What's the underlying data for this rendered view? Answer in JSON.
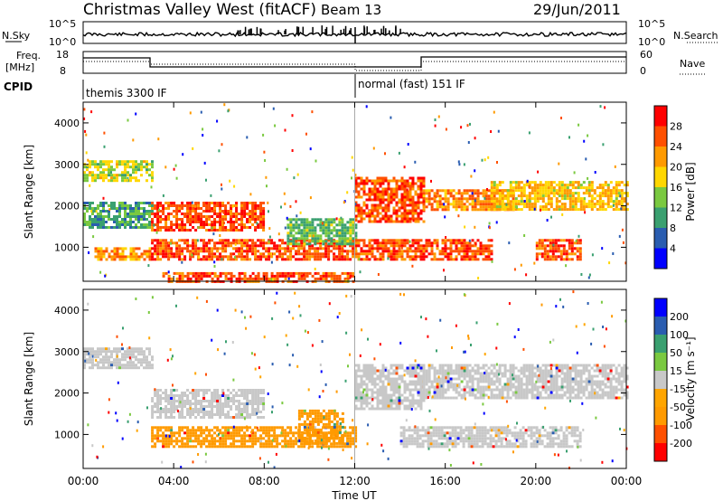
{
  "header": {
    "station": "Christmas Valley West (fitACF)",
    "beam": "Beam 13",
    "date": "29/Jun/2011"
  },
  "top_panels": {
    "nsky_label": "N.Sky",
    "nsearch_label": "N.Search",
    "freq_label_line1": "Freq.",
    "freq_label_line2": "[MHz]",
    "nave_label": "Nave",
    "cpid_label": "CPID",
    "nsky_ticks": [
      "10^5",
      "10^0"
    ],
    "nsky_ticks_right": [
      "10^5",
      "10^0"
    ],
    "freq_ticks": [
      "18",
      "8"
    ],
    "nave_ticks": [
      "60",
      "0"
    ]
  },
  "cpid_segments": [
    {
      "label": "themis 3300 IF",
      "start_hour": 0,
      "end_hour": 12
    },
    {
      "label": "normal (fast) 151 IF",
      "start_hour": 12,
      "end_hour": 24
    }
  ],
  "colorbars": {
    "power": {
      "label": "Power [dB]",
      "ticks": [
        "28",
        "24",
        "20",
        "16",
        "12",
        "8",
        "4"
      ]
    },
    "velocity": {
      "label": "Velocity [m s⁻¹]",
      "ticks": [
        "200",
        "100",
        "50",
        "15",
        "-15",
        "-50",
        "-100",
        "-200"
      ]
    }
  },
  "chart_data": [
    {
      "type": "heatmap",
      "title": "",
      "quantity": "Power",
      "xlabel": "",
      "ylabel": "Slant Range [km]",
      "xlim": [
        0,
        24
      ],
      "ylim": [
        180,
        4500
      ],
      "x_ticks": [
        "00:00",
        "04:00",
        "08:00",
        "12:00",
        "16:00",
        "20:00",
        "00:00"
      ],
      "y_ticks": [
        1000,
        2000,
        3000,
        4000
      ],
      "colorbar_range_db": [
        0,
        32
      ],
      "colors": [
        "#0000ff",
        "#2a5db0",
        "#3aa070",
        "#7ac940",
        "#ffd700",
        "#ff9a00",
        "#ff5000",
        "#ff0000"
      ],
      "features": [
        {
          "x_start": 0.0,
          "x_end": 3.0,
          "range_low": 2600,
          "range_high": 3100,
          "power_db": 16
        },
        {
          "x_start": 0.0,
          "x_end": 3.0,
          "range_low": 1500,
          "range_high": 2100,
          "power_db": 10
        },
        {
          "x_start": 0.5,
          "x_end": 3.0,
          "range_low": 700,
          "range_high": 1000,
          "power_db": 24
        },
        {
          "x_start": 3.0,
          "x_end": 8.0,
          "range_low": 1400,
          "range_high": 2100,
          "power_db": 28
        },
        {
          "x_start": 3.0,
          "x_end": 12.0,
          "range_low": 700,
          "range_high": 1200,
          "power_db": 28
        },
        {
          "x_start": 3.5,
          "x_end": 12.0,
          "range_low": 200,
          "range_high": 400,
          "power_db": 28
        },
        {
          "x_start": 9.0,
          "x_end": 12.0,
          "range_low": 1100,
          "range_high": 1700,
          "power_db": 12
        },
        {
          "x_start": 12.0,
          "x_end": 15.0,
          "range_low": 1600,
          "range_high": 2700,
          "power_db": 28
        },
        {
          "x_start": 12.0,
          "x_end": 18.0,
          "range_low": 700,
          "range_high": 1200,
          "power_db": 28
        },
        {
          "x_start": 15.0,
          "x_end": 19.0,
          "range_low": 1900,
          "range_high": 2400,
          "power_db": 24
        },
        {
          "x_start": 18.0,
          "x_end": 24.0,
          "range_low": 1900,
          "range_high": 2600,
          "power_db": 20
        },
        {
          "x_start": 20.0,
          "x_end": 22.0,
          "range_low": 700,
          "range_high": 1200,
          "power_db": 28
        }
      ]
    },
    {
      "type": "heatmap",
      "title": "",
      "quantity": "Velocity",
      "xlabel": "Time UT",
      "ylabel": "Slant Range [km]",
      "xlim": [
        0,
        24
      ],
      "ylim": [
        180,
        4500
      ],
      "x_ticks": [
        "00:00",
        "04:00",
        "08:00",
        "12:00",
        "16:00",
        "20:00",
        "00:00"
      ],
      "y_ticks": [
        1000,
        2000,
        3000,
        4000
      ],
      "colorbar_range": [
        -200,
        200
      ],
      "colors": [
        "#ff0000",
        "#ff5000",
        "#ff9a00",
        "#ffa500",
        "#c8c8c8",
        "#7ac940",
        "#3aa070",
        "#2a5db0",
        "#0000ff"
      ],
      "features": [
        {
          "x_start": 0.0,
          "x_end": 3.0,
          "range_low": 2600,
          "range_high": 3100,
          "velocity": 0
        },
        {
          "x_start": 3.0,
          "x_end": 8.0,
          "range_low": 1400,
          "range_high": 2100,
          "velocity": 0
        },
        {
          "x_start": 3.0,
          "x_end": 12.0,
          "range_low": 700,
          "range_high": 1200,
          "velocity": -50
        },
        {
          "x_start": 9.5,
          "x_end": 11.5,
          "range_low": 800,
          "range_high": 1600,
          "velocity": -70
        },
        {
          "x_start": 12.0,
          "x_end": 15.0,
          "range_low": 1600,
          "range_high": 2700,
          "velocity": 0
        },
        {
          "x_start": 15.0,
          "x_end": 24.0,
          "range_low": 1900,
          "range_high": 2700,
          "velocity": 0
        },
        {
          "x_start": 14.0,
          "x_end": 22.0,
          "range_low": 700,
          "range_high": 1200,
          "velocity": 0
        }
      ]
    }
  ]
}
